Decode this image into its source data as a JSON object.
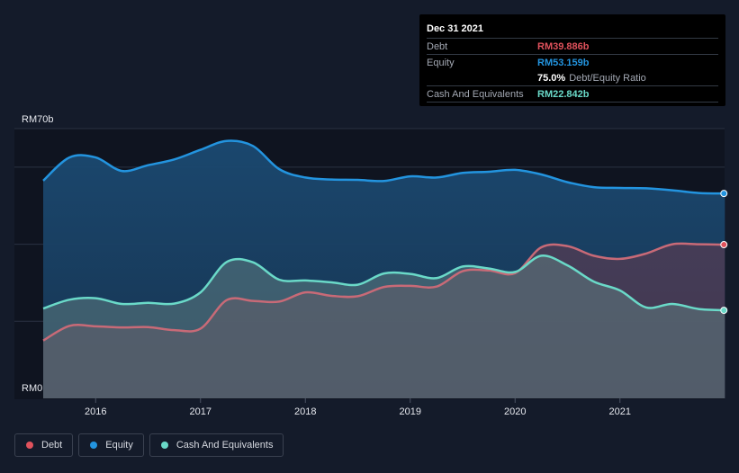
{
  "tooltip": {
    "date": "Dec 31 2021",
    "debt_label": "Debt",
    "debt_value": "RM39.886b",
    "equity_label": "Equity",
    "equity_value": "RM53.159b",
    "ratio_value": "75.0%",
    "ratio_label": "Debt/Equity Ratio",
    "cash_label": "Cash And Equivalents",
    "cash_value": "RM22.842b"
  },
  "legend": [
    {
      "label": "Debt",
      "color": "#e0525c"
    },
    {
      "label": "Equity",
      "color": "#2394df"
    },
    {
      "label": "Cash And Equivalents",
      "color": "#6ad9c8"
    }
  ],
  "colors": {
    "debt": "#e0525c",
    "equity": "#2394df",
    "cash": "#6ad9c8",
    "background": "#141b2a"
  },
  "chart_data": {
    "type": "area",
    "ylabel_top": "RM70b",
    "ylabel_bottom": "RM0",
    "ylim": [
      0,
      70
    ],
    "xlim": [
      2015.5,
      2022.0
    ],
    "x_ticks": [
      2016,
      2017,
      2018,
      2019,
      2020,
      2021
    ],
    "series": [
      {
        "name": "Equity",
        "x": [
          2015.5,
          2015.75,
          2016.0,
          2016.25,
          2016.5,
          2016.75,
          2017.0,
          2017.25,
          2017.5,
          2017.75,
          2018.0,
          2018.25,
          2018.5,
          2018.75,
          2019.0,
          2019.25,
          2019.5,
          2019.75,
          2020.0,
          2020.25,
          2020.5,
          2020.75,
          2021.0,
          2021.25,
          2021.5,
          2021.75,
          2022.0
        ],
        "values": [
          56.5,
          62.5,
          62.5,
          59.0,
          60.5,
          62.0,
          64.5,
          66.8,
          65.5,
          59.5,
          57.3,
          56.8,
          56.7,
          56.4,
          57.6,
          57.3,
          58.5,
          58.8,
          59.3,
          58.1,
          56.1,
          54.8,
          54.6,
          54.5,
          54.0,
          53.3,
          53.159
        ]
      },
      {
        "name": "Debt",
        "x": [
          2015.5,
          2015.75,
          2016.0,
          2016.25,
          2016.5,
          2016.75,
          2017.0,
          2017.25,
          2017.5,
          2017.75,
          2018.0,
          2018.25,
          2018.5,
          2018.75,
          2019.0,
          2019.25,
          2019.5,
          2019.75,
          2020.0,
          2020.25,
          2020.5,
          2020.75,
          2021.0,
          2021.25,
          2021.5,
          2021.75,
          2022.0
        ],
        "values": [
          15.0,
          18.8,
          18.7,
          18.4,
          18.5,
          17.7,
          18.1,
          25.5,
          25.3,
          25.1,
          27.5,
          26.6,
          26.5,
          28.9,
          29.2,
          29.0,
          33.0,
          33.2,
          32.5,
          39.2,
          39.5,
          37.0,
          36.2,
          37.6,
          40.0,
          40.0,
          39.886
        ]
      },
      {
        "name": "Cash And Equivalents",
        "x": [
          2015.5,
          2015.75,
          2016.0,
          2016.25,
          2016.5,
          2016.75,
          2017.0,
          2017.25,
          2017.5,
          2017.75,
          2018.0,
          2018.25,
          2018.5,
          2018.75,
          2019.0,
          2019.25,
          2019.5,
          2019.75,
          2020.0,
          2020.25,
          2020.5,
          2020.75,
          2021.0,
          2021.25,
          2021.5,
          2021.75,
          2022.0
        ],
        "values": [
          23.3,
          25.6,
          26.0,
          24.5,
          24.8,
          24.6,
          27.5,
          35.4,
          35.3,
          30.8,
          30.6,
          30.1,
          29.5,
          32.4,
          32.3,
          31.2,
          34.2,
          33.7,
          32.8,
          37.0,
          34.5,
          30.3,
          28.0,
          23.6,
          24.5,
          23.2,
          22.842
        ]
      }
    ],
    "grid": true,
    "legend_position": "bottom-left"
  }
}
